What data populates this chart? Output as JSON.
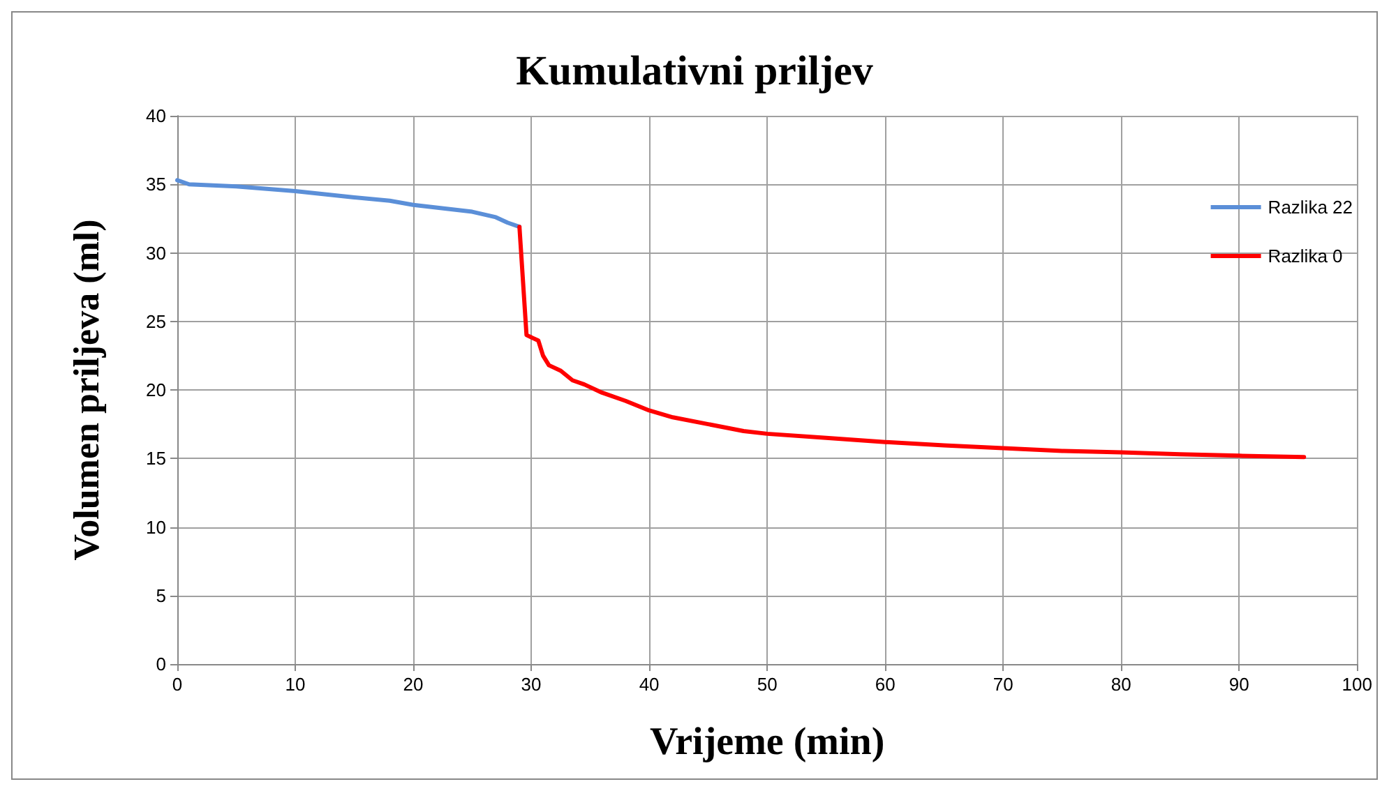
{
  "chart_data": {
    "type": "line",
    "title": "Kumulativni priljev",
    "xlabel": "Vrijeme (min)",
    "ylabel": "Volumen priljeva (ml)",
    "xlim": [
      0,
      100
    ],
    "xticks": [
      0,
      10,
      20,
      30,
      40,
      50,
      60,
      70,
      80,
      90,
      100
    ],
    "ylim": [
      0,
      40
    ],
    "yticks": [
      0,
      5,
      10,
      15,
      20,
      25,
      30,
      35,
      40
    ],
    "grid": true,
    "legend": "top right",
    "marker": "none",
    "line_style": "solid",
    "series": [
      {
        "name": "Razlika 22",
        "color": "#5b8fd8",
        "x": [
          0,
          1,
          5,
          10,
          15,
          18,
          20,
          25,
          27,
          28,
          29
        ],
        "values": [
          35.3,
          35.0,
          34.85,
          34.5,
          34.05,
          33.8,
          33.5,
          33.0,
          32.6,
          32.2,
          31.9
        ]
      },
      {
        "name": "Razlika 0",
        "color": "#ff0000",
        "x": [
          29,
          29.6,
          30.6,
          31,
          31.5,
          32.5,
          33.5,
          34.5,
          36,
          38,
          40,
          42,
          45,
          48,
          50,
          55,
          60,
          65,
          70,
          75,
          80,
          85,
          90,
          95.5
        ],
        "values": [
          31.9,
          24.0,
          23.6,
          22.5,
          21.8,
          21.4,
          20.7,
          20.4,
          19.8,
          19.2,
          18.5,
          18.0,
          17.5,
          17.0,
          16.8,
          16.5,
          16.2,
          15.95,
          15.75,
          15.55,
          15.45,
          15.3,
          15.2,
          15.1
        ]
      }
    ]
  }
}
